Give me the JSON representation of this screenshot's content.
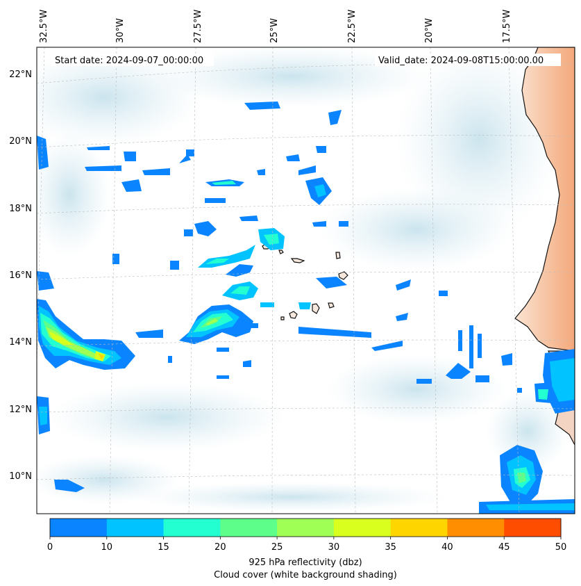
{
  "map": {
    "start_date_text": "Start date: 2024-09-07_00:00:00",
    "valid_date_text": "Valid_date: 2024-09-08T15:00:00.00",
    "lon_labels": [
      "32.5°W",
      "30°W",
      "27.5°W",
      "25°W",
      "22.5°W",
      "20°W",
      "17.5°W"
    ],
    "lat_labels": [
      "22°N",
      "20°N",
      "18°N",
      "16°N",
      "14°N",
      "12°N",
      "10°N"
    ],
    "gridlines": "dashed",
    "land_shading": "orange (Africa coast, top-right)",
    "cloud_shading": "light blue/white background"
  },
  "colorbar": {
    "ticks": [
      "0",
      "10",
      "15",
      "20",
      "25",
      "30",
      "35",
      "40",
      "45",
      "50"
    ],
    "colors": [
      "#0a84ff",
      "#00c3ff",
      "#24ffd2",
      "#5dff8a",
      "#a0ff55",
      "#d8ff1e",
      "#ffd500",
      "#ff8f00",
      "#ff4d00"
    ],
    "label_line1": "925 hPa reflectivity (dbz)",
    "label_line2": "Cloud cover (white background shading)"
  }
}
